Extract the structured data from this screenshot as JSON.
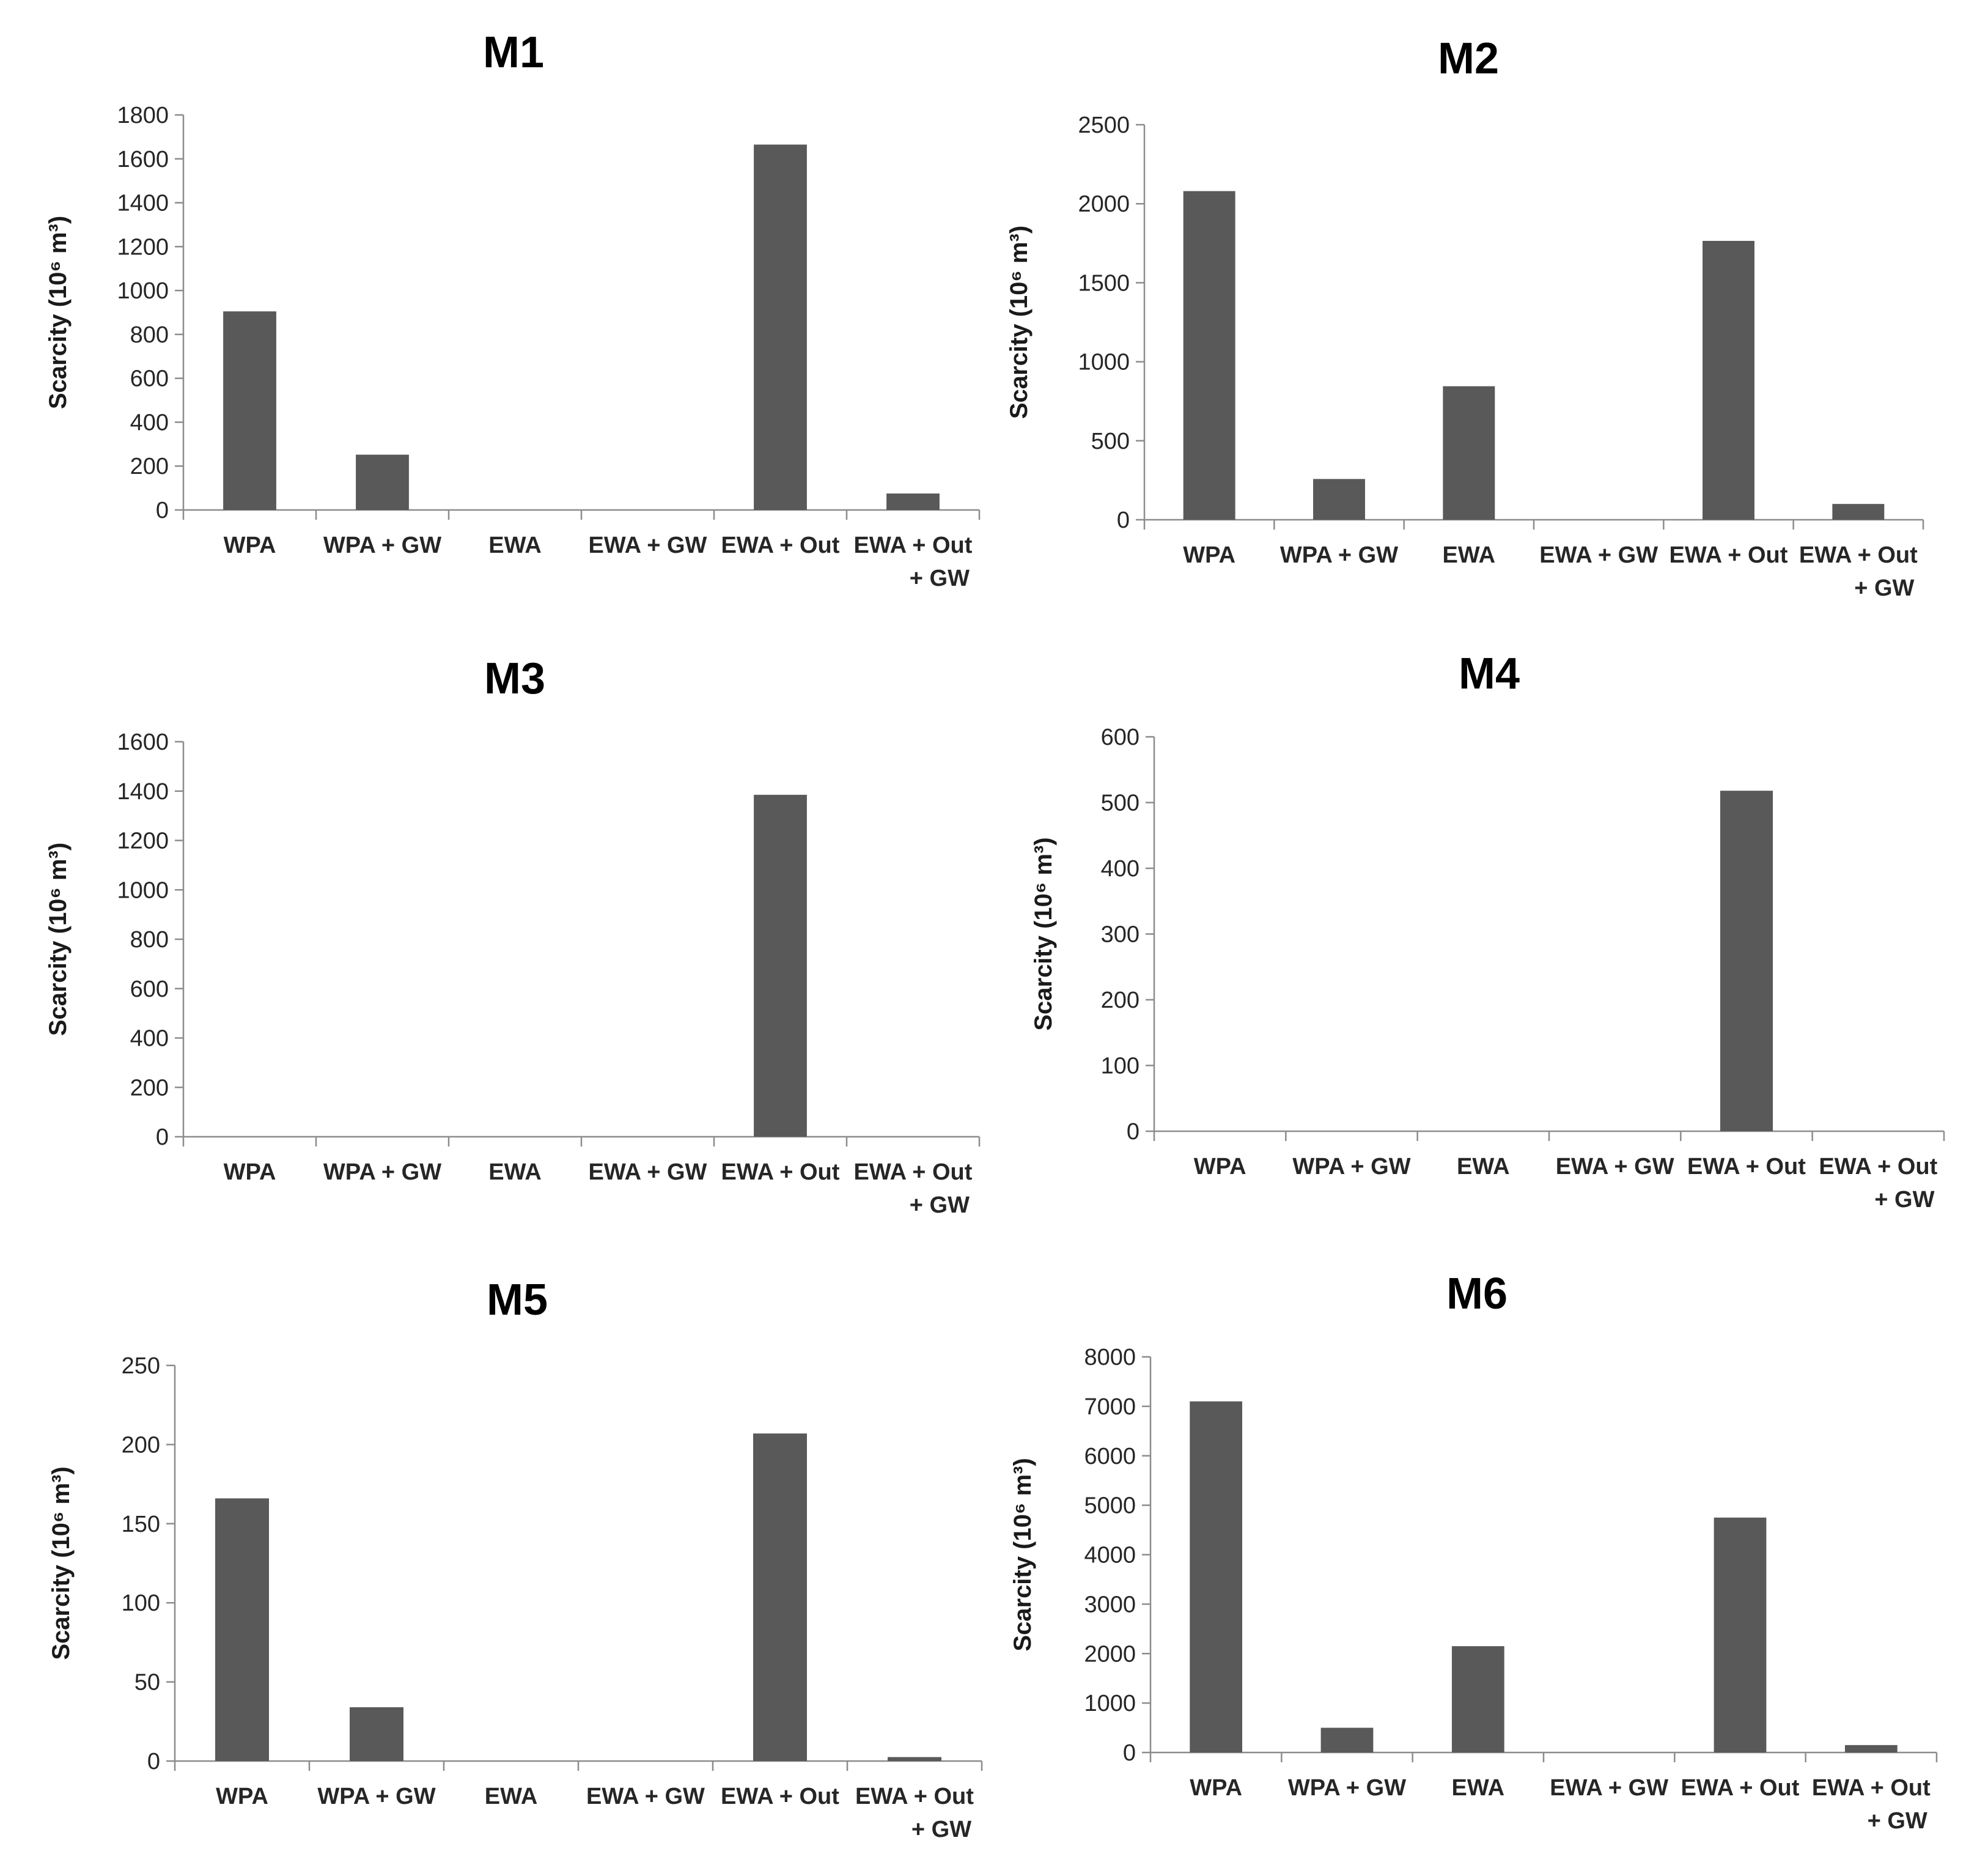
{
  "figure": {
    "bar_color": "#595959",
    "axis_color": "#8c8c8c",
    "text_color": "#262626"
  },
  "chart_data": [
    {
      "type": "bar",
      "title": "M1",
      "xlabel": "",
      "ylabel": "Scarcity (10⁶ m³)",
      "categories": [
        [
          "WPA"
        ],
        [
          "WPA + GW"
        ],
        [
          "EWA"
        ],
        [
          "EWA + GW"
        ],
        [
          "EWA + Out"
        ],
        [
          "EWA + Out",
          "+ GW"
        ]
      ],
      "values": [
        905,
        252,
        0,
        0,
        1665,
        75
      ],
      "ylim": [
        0,
        1800
      ],
      "yticks": [
        0,
        200,
        400,
        600,
        800,
        1000,
        1200,
        1400,
        1600,
        1800
      ],
      "grid": false
    },
    {
      "type": "bar",
      "title": "M2",
      "xlabel": "",
      "ylabel": "Scarcity (10⁶ m³)",
      "categories": [
        [
          "WPA"
        ],
        [
          "WPA + GW"
        ],
        [
          "EWA"
        ],
        [
          "EWA + GW"
        ],
        [
          "EWA + Out"
        ],
        [
          "EWA + Out",
          "+ GW"
        ]
      ],
      "values": [
        2080,
        258,
        845,
        0,
        1765,
        100
      ],
      "ylim": [
        0,
        2500
      ],
      "yticks": [
        0,
        500,
        1000,
        1500,
        2000,
        2500
      ],
      "grid": false
    },
    {
      "type": "bar",
      "title": "M3",
      "xlabel": "",
      "ylabel": "Scarcity (10⁶ m³)",
      "categories": [
        [
          "WPA"
        ],
        [
          "WPA + GW"
        ],
        [
          "EWA"
        ],
        [
          "EWA + GW"
        ],
        [
          "EWA + Out"
        ],
        [
          "EWA + Out",
          "+ GW"
        ]
      ],
      "values": [
        0,
        0,
        0,
        0,
        1385,
        0
      ],
      "ylim": [
        0,
        1600
      ],
      "yticks": [
        0,
        200,
        400,
        600,
        800,
        1000,
        1200,
        1400,
        1600
      ],
      "grid": false
    },
    {
      "type": "bar",
      "title": "M4",
      "xlabel": "",
      "ylabel": "Scarcity (10⁶ m³)",
      "categories": [
        [
          "WPA"
        ],
        [
          "WPA + GW"
        ],
        [
          "EWA"
        ],
        [
          "EWA + GW"
        ],
        [
          "EWA + Out"
        ],
        [
          "EWA + Out",
          "+ GW"
        ]
      ],
      "values": [
        0,
        0,
        0,
        0,
        518,
        0
      ],
      "ylim": [
        0,
        600
      ],
      "yticks": [
        0,
        100,
        200,
        300,
        400,
        500,
        600
      ],
      "grid": false
    },
    {
      "type": "bar",
      "title": "M5",
      "xlabel": "",
      "ylabel": "Scarcity (10⁶ m³)",
      "categories": [
        [
          "WPA"
        ],
        [
          "WPA + GW"
        ],
        [
          "EWA"
        ],
        [
          "EWA + GW"
        ],
        [
          "EWA + Out"
        ],
        [
          "EWA + Out",
          "+ GW"
        ]
      ],
      "values": [
        166,
        34,
        0,
        0,
        207,
        2.5
      ],
      "ylim": [
        0,
        250
      ],
      "yticks": [
        0,
        50,
        100,
        150,
        200,
        250
      ],
      "grid": false
    },
    {
      "type": "bar",
      "title": "M6",
      "xlabel": "",
      "ylabel": "Scarcity (10⁶ m³)",
      "categories": [
        [
          "WPA"
        ],
        [
          "WPA + GW"
        ],
        [
          "EWA"
        ],
        [
          "EWA + GW"
        ],
        [
          "EWA + Out"
        ],
        [
          "EWA + Out",
          "+ GW"
        ]
      ],
      "values": [
        7100,
        500,
        2150,
        0,
        4750,
        150
      ],
      "ylim": [
        0,
        8000
      ],
      "yticks": [
        0,
        1000,
        2000,
        3000,
        4000,
        5000,
        6000,
        7000,
        8000
      ],
      "grid": false
    }
  ]
}
